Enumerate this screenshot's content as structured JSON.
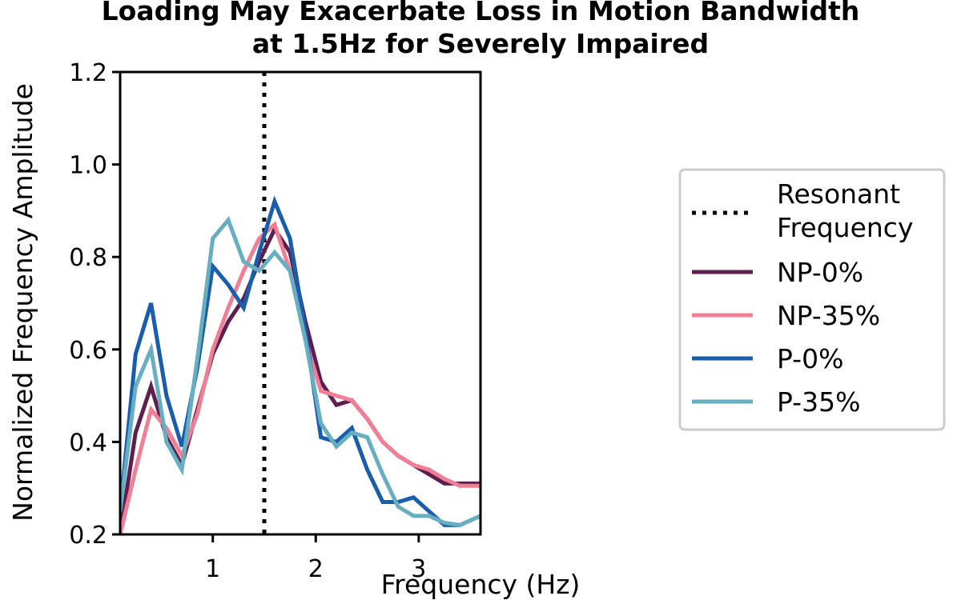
{
  "chart_data": {
    "type": "line",
    "title": "Loading May Exacerbate Loss in Motion Bandwidth",
    "subtitle": "at 1.5Hz for Severely Impaired",
    "xlabel": "Frequency (Hz)",
    "ylabel": "Normalized Frequency Amplitude",
    "xlim": [
      0.1,
      3.6
    ],
    "ylim": [
      0.2,
      1.2
    ],
    "xticks": [
      1,
      2,
      3
    ],
    "xtick_labels": [
      "1",
      "2",
      "3"
    ],
    "yticks": [
      0.2,
      0.4,
      0.6,
      0.8,
      1.0,
      1.2
    ],
    "ytick_labels": [
      "0.2",
      "0.4",
      "0.6",
      "0.8",
      "1.0",
      "1.2"
    ],
    "grid": false,
    "legend_position": "right",
    "vline": {
      "x": 1.5,
      "label_lines": [
        "Resonant",
        "Frequency"
      ],
      "style": "dotted",
      "color": "#000000"
    },
    "x": [
      0.1,
      0.25,
      0.4,
      0.55,
      0.7,
      0.85,
      1.0,
      1.15,
      1.3,
      1.45,
      1.6,
      1.75,
      1.9,
      2.05,
      2.2,
      2.35,
      2.5,
      2.65,
      2.8,
      2.95,
      3.1,
      3.25,
      3.4,
      3.6
    ],
    "series": [
      {
        "name": "NP-0%",
        "color": "#5e1f4f",
        "values": [
          0.2,
          0.42,
          0.52,
          0.41,
          0.35,
          0.47,
          0.59,
          0.66,
          0.71,
          0.79,
          0.86,
          0.81,
          0.66,
          0.53,
          0.48,
          0.49,
          0.45,
          0.4,
          0.37,
          0.35,
          0.33,
          0.31,
          0.31,
          0.31
        ]
      },
      {
        "name": "NP-35%",
        "color": "#f07f96",
        "values": [
          0.2,
          0.34,
          0.47,
          0.43,
          0.37,
          0.46,
          0.6,
          0.69,
          0.77,
          0.84,
          0.87,
          0.77,
          0.62,
          0.51,
          0.5,
          0.49,
          0.45,
          0.4,
          0.37,
          0.35,
          0.34,
          0.32,
          0.305,
          0.305
        ]
      },
      {
        "name": "P-0%",
        "color": "#1a5eab",
        "values": [
          0.25,
          0.59,
          0.7,
          0.5,
          0.39,
          0.56,
          0.78,
          0.74,
          0.69,
          0.81,
          0.92,
          0.84,
          0.64,
          0.41,
          0.4,
          0.43,
          0.34,
          0.27,
          0.27,
          0.28,
          0.25,
          0.22,
          0.22,
          0.24
        ]
      },
      {
        "name": "P-35%",
        "color": "#67aec0",
        "values": [
          0.25,
          0.52,
          0.6,
          0.4,
          0.34,
          0.58,
          0.84,
          0.88,
          0.79,
          0.77,
          0.81,
          0.77,
          0.62,
          0.44,
          0.39,
          0.42,
          0.41,
          0.33,
          0.26,
          0.24,
          0.24,
          0.225,
          0.22,
          0.24
        ]
      }
    ]
  }
}
